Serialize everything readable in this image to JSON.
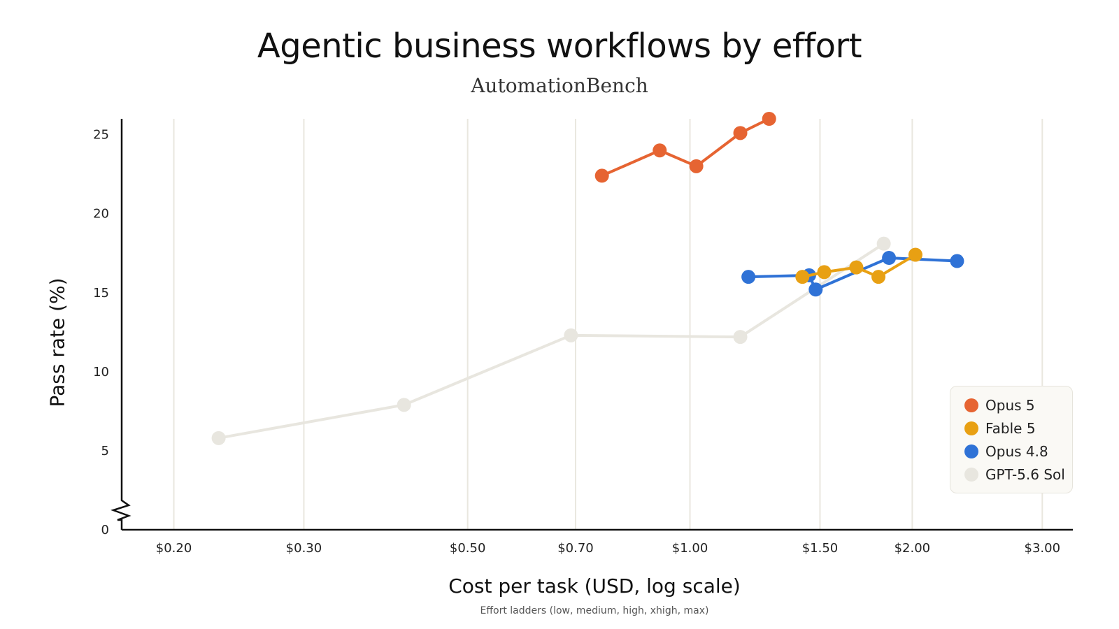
{
  "chart_data": {
    "type": "line",
    "title": "Agentic business workflows by effort",
    "subtitle": "AutomationBench",
    "xlabel": "Cost per task (USD, log scale)",
    "ylabel": "Pass rate (%)",
    "note": "Effort ladders (low, medium, high, xhigh, max)",
    "x_scale": "log",
    "xlim": [
      0.17,
      3.3
    ],
    "ylim": [
      0,
      26
    ],
    "x_ticks": [
      0.2,
      0.3,
      0.5,
      0.7,
      1.0,
      1.5,
      2.0,
      3.0
    ],
    "x_tick_labels": [
      "$0.20",
      "$0.30",
      "$0.50",
      "$0.70",
      "$1.00",
      "$1.50",
      "$2.00",
      "$3.00"
    ],
    "y_ticks": [
      0,
      5,
      10,
      15,
      20,
      25
    ],
    "y_tick_labels": [
      "0",
      "5",
      "10",
      "15",
      "20",
      "25"
    ],
    "y_axis_break": true,
    "grid": "vertical",
    "legend_position": "bottom-right",
    "series": [
      {
        "name": "GPT-5.6 Sol",
        "color": "#e8e6df",
        "x": [
          0.23,
          0.41,
          0.69,
          1.17,
          1.83
        ],
        "y": [
          5.8,
          7.9,
          12.3,
          12.2,
          18.1
        ]
      },
      {
        "name": "Opus 4.8",
        "color": "#2f72d6",
        "x": [
          1.2,
          1.45,
          1.48,
          1.86,
          2.3
        ],
        "y": [
          16.0,
          16.1,
          15.2,
          17.2,
          17.0
        ]
      },
      {
        "name": "Fable 5",
        "color": "#e8a013",
        "x": [
          1.42,
          1.52,
          1.68,
          1.8,
          2.02
        ],
        "y": [
          16.0,
          16.3,
          16.6,
          16.0,
          17.4
        ]
      },
      {
        "name": "Opus 5",
        "color": "#e66432",
        "x": [
          0.76,
          0.91,
          1.02,
          1.17,
          1.28
        ],
        "y": [
          22.4,
          24.0,
          23.0,
          25.1,
          26.0
        ]
      }
    ],
    "legend_order": [
      "Opus 5",
      "Fable 5",
      "Opus 4.8",
      "GPT-5.6 Sol"
    ]
  }
}
